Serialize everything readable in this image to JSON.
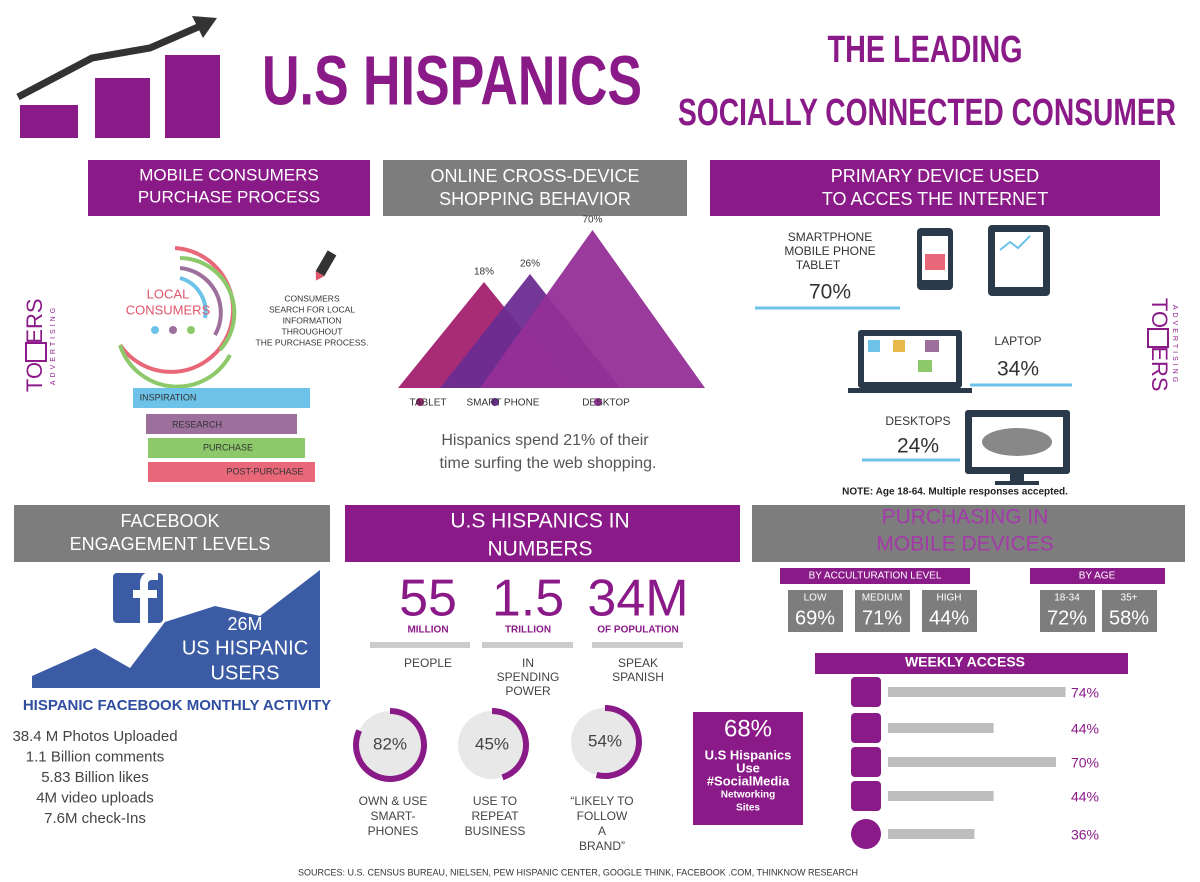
{
  "header": {
    "title": "U.S HISPANICS",
    "tagline_1": "THE LEADING",
    "tagline_2": "SOCIALLY CONNECTED CONSUMER"
  },
  "logo": {
    "part_1": "TO",
    "part_2": "ERS",
    "sub": "ADVERTISING"
  },
  "mobile_consumers": {
    "title_1": "MOBILE CONSUMERS",
    "title_2": "PURCHASE PROCESS",
    "circle_1": "LOCAL",
    "circle_2": "CONSUMERS",
    "note": [
      "CONSUMERS",
      "SEARCH FOR LOCAL",
      "INFORMATION",
      "THROUGHOUT",
      "THE PURCHASE PROCESS."
    ],
    "steps": [
      "INSPIRATION",
      "RESEARCH",
      "PURCHASE",
      "POST-PURCHASE"
    ]
  },
  "cross_device": {
    "title_1": "ONLINE CROSS-DEVICE",
    "title_2": "SHOPPING BEHAVIOR",
    "categories": [
      "TABLET",
      "SMART PHONE",
      "DESKTOP"
    ],
    "values": [
      18,
      26,
      70
    ],
    "value_labels": [
      "18%",
      "26%",
      "70%"
    ],
    "colors": [
      "#a3206f",
      "#6b2c91",
      "#952f97"
    ],
    "caption_1": "Hispanics spend 21% of their",
    "caption_2": "time surfing the web shopping."
  },
  "primary_device": {
    "title_1": "PRIMARY DEVICE USED",
    "title_2": "TO ACCES THE INTERNET",
    "smartphone": [
      "SMARTPHONE",
      "MOBILE PHONE",
      "TABLET"
    ],
    "smartphone_value": "70%",
    "laptop": "LAPTOP",
    "laptop_value": "34%",
    "desktop": "DESKTOPS",
    "desktop_value": "24%",
    "note": "NOTE: Age 18-64. Multiple responses accepted."
  },
  "facebook": {
    "title_1": "FACEBOOK",
    "title_2": "ENGAGEMENT LEVELS",
    "users_1": "26M",
    "users_2": "US HISPANIC",
    "users_3": "USERS",
    "activity_title": "HISPANIC FACEBOOK MONTHLY ACTIVITY",
    "activity": [
      "38.4 M Photos Uploaded",
      "1.1 Billion comments",
      "5.83 Billion likes",
      "4M video uploads",
      "7.6M check-Ins"
    ]
  },
  "numbers": {
    "title_1": "U.S HISPANICS IN",
    "title_2": "NUMBERS",
    "stats": [
      {
        "number": "55",
        "unit": "MILLION",
        "desc": [
          "PEOPLE"
        ]
      },
      {
        "number": "1.5",
        "unit": "TRILLION",
        "desc": [
          "IN",
          "SPENDING",
          "POWER"
        ]
      },
      {
        "number": "34M",
        "unit": "OF POPULATION",
        "desc": [
          "SPEAK",
          "SPANISH"
        ]
      }
    ],
    "rings": {
      "values": [
        82,
        45,
        54
      ],
      "value_labels": [
        "82%",
        "45%",
        "54%"
      ],
      "captions": [
        [
          "OWN & USE",
          "SMART-",
          "PHONES"
        ],
        [
          "USE TO",
          "REPEAT",
          "BUSINESS"
        ],
        [
          "“LIKELY TO",
          "FOLLOW",
          "A",
          "BRAND”"
        ]
      ]
    },
    "social": {
      "value": "68%",
      "lines": [
        "U.S Hispanics",
        "Use",
        "#SocialMedia",
        "Networking",
        "Sites"
      ]
    }
  },
  "mobile_purchasing": {
    "title_1": "PURCHASING IN",
    "title_2": "MOBILE DEVICES",
    "acculturation": {
      "title": "BY ACCULTURATION LEVEL",
      "levels": [
        "LOW",
        "MEDIUM",
        "HIGH"
      ],
      "values": [
        "69%",
        "71%",
        "44%"
      ]
    },
    "age": {
      "title": "BY AGE",
      "groups": [
        "18-34",
        "35+"
      ],
      "values": [
        "72%",
        "58%"
      ]
    }
  },
  "weekly_access": {
    "title": "WEEKLY ACCESS",
    "values": [
      74,
      44,
      70,
      44,
      36
    ],
    "value_labels": [
      "74%",
      "44%",
      "70%",
      "44%",
      "36%"
    ]
  },
  "sources": "SOURCES: U.S. CENSUS BUREAU,  NIELSEN, PEW HISPANIC CENTER, GOOGLE THINK, FACEBOOK .COM, THINKNOW RESEARCH"
}
